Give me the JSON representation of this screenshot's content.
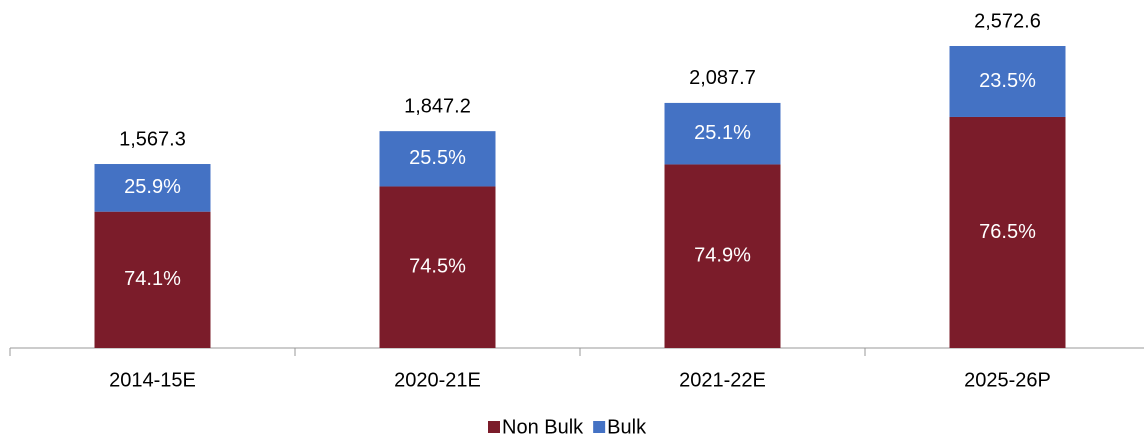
{
  "chart_data": {
    "type": "stacked-bar",
    "categories": [
      "2014-15E",
      "2020-21E",
      "2021-22E",
      "2025-26P"
    ],
    "series": [
      {
        "name": "Non Bulk",
        "color": "#7b1c2a",
        "values": [
          74.1,
          74.5,
          74.9,
          76.5
        ],
        "value_labels": [
          "74.1%",
          "74.5%",
          "74.9%",
          "76.5%"
        ]
      },
      {
        "name": "Bulk",
        "color": "#4472c4",
        "values": [
          25.9,
          25.5,
          25.1,
          23.5
        ],
        "value_labels": [
          "25.9%",
          "25.5%",
          "25.1%",
          "23.5%"
        ]
      }
    ],
    "totals": {
      "values": [
        1567.3,
        1847.2,
        2087.7,
        2572.6
      ],
      "value_labels": [
        "1,567.3",
        "1,847.2",
        "2,087.7",
        "2,572.6"
      ]
    },
    "legend": "bottom"
  }
}
